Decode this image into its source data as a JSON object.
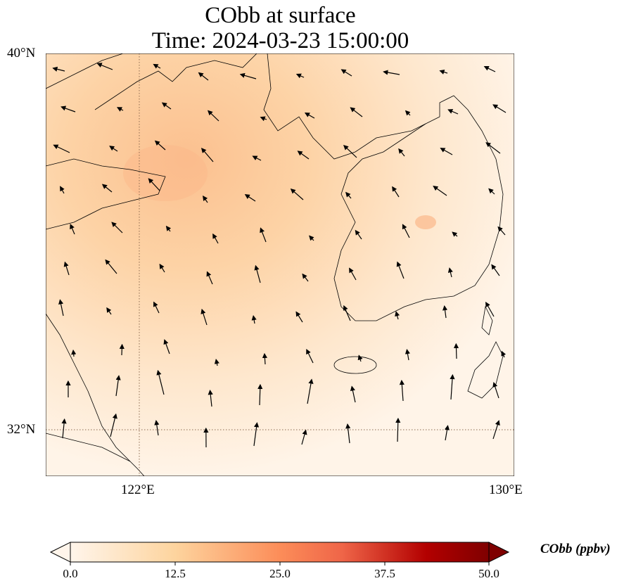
{
  "title": {
    "line1": "CObb at surface",
    "line2": "Time: 2024-03-23 15:00:00"
  },
  "axes": {
    "lat_labels": [
      "40°N",
      "32°N"
    ],
    "lon_labels": [
      "122°E",
      "130°E"
    ]
  },
  "colorbar": {
    "label": "CObb (ppbv)",
    "ticks": [
      "0.0",
      "12.5",
      "25.0",
      "37.5",
      "50.0"
    ],
    "range": [
      0,
      50
    ],
    "extend": "both",
    "colormap": [
      "#fff5eb",
      "#fdd49e",
      "#fc8d59",
      "#d7301f",
      "#b30000",
      "#7f0000"
    ]
  },
  "colors": {
    "field_low": "#fff2e2",
    "field_mid": "#fdd3a4",
    "field_high": "#fab785"
  }
}
